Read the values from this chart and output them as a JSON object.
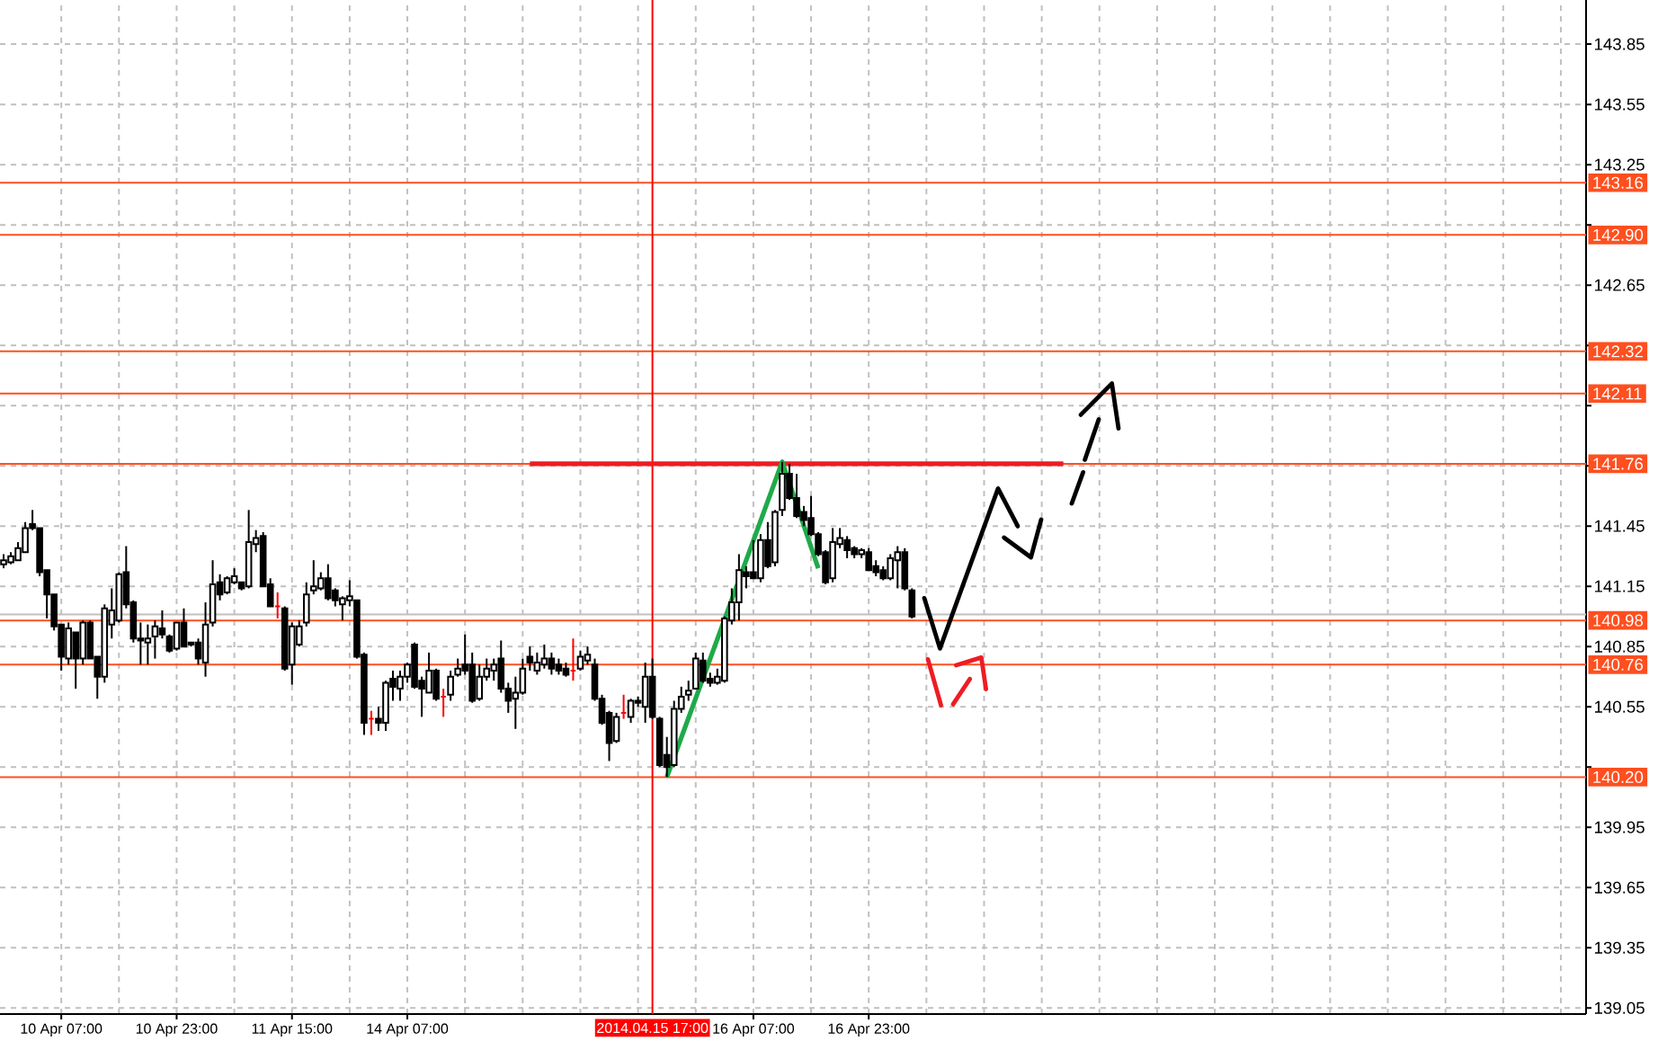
{
  "chart_data": {
    "type": "candlestick",
    "categories": [
      null,
      null,
      null,
      null,
      null,
      null,
      null,
      null,
      "10 Apr 07:00",
      null,
      null,
      null,
      null,
      null,
      null,
      null,
      null,
      null,
      null,
      null,
      null,
      null,
      null,
      null,
      "10 Apr 23:00",
      null,
      null,
      null,
      null,
      null,
      null,
      null,
      null,
      null,
      null,
      null,
      null,
      null,
      null,
      null,
      "11 Apr 15:00",
      null,
      null,
      null,
      null,
      null,
      null,
      null,
      null,
      null,
      null,
      null,
      null,
      null,
      null,
      null,
      "14 Apr 07:00",
      null,
      null,
      null,
      null,
      null,
      null,
      null,
      null,
      null,
      null,
      null,
      null,
      null,
      null,
      null,
      null,
      null,
      null,
      null,
      null,
      null,
      null,
      null,
      null,
      null,
      null,
      null,
      null,
      null,
      null,
      null,
      null,
      null,
      "2014.04.15 17:00",
      null,
      null,
      null,
      null,
      null,
      null,
      null,
      null,
      null,
      null,
      null,
      null,
      null,
      "16 Apr 07:00",
      null,
      null,
      null,
      null,
      null,
      null,
      null,
      null,
      null,
      null,
      null,
      null,
      null,
      null,
      null,
      "16 Apr 23:00",
      null,
      null,
      null,
      null,
      null,
      null,
      null,
      null,
      null,
      null,
      null,
      null,
      null,
      null,
      null,
      null,
      null,
      null,
      null,
      null,
      null,
      null,
      null,
      null,
      null,
      null,
      null,
      null,
      null,
      null,
      null,
      null,
      null,
      null,
      null,
      null,
      null,
      null,
      null,
      null,
      null,
      null,
      null,
      null,
      null,
      null,
      null,
      null,
      null,
      null,
      null,
      null,
      null,
      null,
      null,
      null,
      null,
      null,
      null,
      null,
      null,
      null,
      null,
      null,
      null,
      null,
      null,
      null,
      null,
      null,
      null,
      null,
      null,
      null,
      null,
      null,
      null,
      null,
      null,
      null,
      null,
      null,
      null,
      null,
      null,
      null,
      null,
      null,
      null,
      null,
      null,
      null,
      null,
      null,
      null,
      null,
      null,
      null,
      null
    ],
    "ohlc": [
      [
        141.26,
        141.31,
        141.24,
        141.28
      ],
      [
        141.27,
        141.32,
        141.26,
        141.3
      ],
      [
        141.28,
        141.37,
        141.28,
        141.34
      ],
      [
        141.32,
        141.47,
        141.32,
        141.44
      ],
      [
        141.46,
        141.53,
        141.43,
        141.44
      ],
      [
        141.44,
        141.44,
        141.2,
        141.22
      ],
      [
        141.23,
        141.23,
        140.99,
        141.11
      ],
      [
        141.11,
        141.11,
        140.93,
        140.95
      ],
      [
        140.96,
        140.96,
        140.73,
        140.8
      ],
      [
        140.79,
        140.97,
        140.76,
        140.94
      ],
      [
        140.92,
        140.92,
        140.64,
        140.79
      ],
      [
        140.79,
        140.98,
        140.76,
        140.97
      ],
      [
        140.97,
        140.98,
        140.79,
        140.79
      ],
      [
        140.8,
        140.8,
        140.59,
        140.7
      ],
      [
        140.7,
        141.06,
        140.67,
        141.04
      ],
      [
        140.96,
        141.14,
        140.89,
        141.03
      ],
      [
        140.98,
        141.22,
        140.97,
        141.21
      ],
      [
        141.22,
        141.35,
        141.04,
        141.06
      ],
      [
        141.07,
        141.08,
        140.87,
        140.89
      ],
      [
        140.89,
        140.97,
        140.76,
        140.88
      ],
      [
        140.87,
        140.96,
        140.76,
        140.89
      ],
      [
        140.9,
        140.98,
        140.79,
        140.95
      ],
      [
        140.94,
        141.03,
        140.89,
        140.91
      ],
      [
        140.9,
        140.91,
        140.82,
        140.83
      ],
      [
        140.84,
        140.97,
        140.83,
        140.97
      ],
      [
        140.97,
        141.04,
        140.85,
        140.85
      ],
      [
        140.87,
        140.87,
        140.85,
        140.86
      ],
      [
        140.87,
        140.89,
        140.76,
        140.79
      ],
      [
        140.77,
        141.07,
        140.7,
        140.96
      ],
      [
        140.97,
        141.28,
        140.95,
        141.16
      ],
      [
        141.17,
        141.21,
        141.08,
        141.11
      ],
      [
        141.12,
        141.2,
        141.11,
        141.19
      ],
      [
        141.17,
        141.24,
        141.16,
        141.2
      ],
      [
        141.17,
        141.17,
        141.13,
        141.14
      ],
      [
        141.15,
        141.53,
        141.14,
        141.37
      ],
      [
        141.36,
        141.43,
        141.32,
        141.39
      ],
      [
        141.4,
        141.42,
        141.15,
        141.15
      ],
      [
        141.16,
        141.19,
        141.05,
        141.05
      ],
      [
        141.05,
        141.12,
        140.99,
        141.05
      ],
      [
        141.04,
        141.05,
        140.73,
        140.74
      ],
      [
        140.76,
        140.97,
        140.66,
        140.95
      ],
      [
        140.86,
        140.98,
        140.85,
        140.95
      ],
      [
        140.97,
        141.17,
        140.95,
        141.11
      ],
      [
        141.13,
        141.28,
        141.11,
        141.15
      ],
      [
        141.14,
        141.22,
        141.13,
        141.19
      ],
      [
        141.19,
        141.26,
        141.08,
        141.09
      ],
      [
        141.13,
        141.14,
        141.05,
        141.08
      ],
      [
        141.06,
        141.1,
        140.98,
        141.09
      ],
      [
        141.08,
        141.18,
        141.05,
        141.1
      ],
      [
        141.08,
        141.08,
        140.79,
        140.8
      ],
      [
        140.81,
        140.82,
        140.41,
        140.47
      ],
      [
        140.49,
        140.53,
        140.41,
        140.49
      ],
      [
        140.49,
        140.55,
        140.43,
        140.47
      ],
      [
        140.47,
        140.68,
        140.43,
        140.67
      ],
      [
        140.69,
        140.73,
        140.58,
        140.65
      ],
      [
        140.64,
        140.73,
        140.58,
        140.7
      ],
      [
        140.7,
        140.77,
        140.67,
        140.76
      ],
      [
        140.86,
        140.87,
        140.64,
        140.65
      ],
      [
        140.68,
        140.7,
        140.5,
        140.64
      ],
      [
        140.62,
        140.82,
        140.62,
        140.73
      ],
      [
        140.73,
        140.74,
        140.58,
        140.59
      ],
      [
        140.6,
        140.64,
        140.5,
        140.6
      ],
      [
        140.61,
        140.73,
        140.58,
        140.7
      ],
      [
        140.71,
        140.79,
        140.7,
        140.74
      ],
      [
        140.76,
        140.91,
        140.71,
        140.73
      ],
      [
        140.76,
        140.82,
        140.57,
        140.58
      ],
      [
        140.59,
        140.76,
        140.58,
        140.7
      ],
      [
        140.7,
        140.79,
        140.68,
        140.74
      ],
      [
        140.73,
        140.79,
        140.68,
        140.76
      ],
      [
        140.79,
        140.88,
        140.62,
        140.64
      ],
      [
        140.64,
        140.67,
        140.52,
        140.58
      ],
      [
        140.59,
        140.7,
        140.44,
        140.62
      ],
      [
        140.62,
        140.79,
        140.61,
        140.74
      ],
      [
        140.8,
        140.85,
        140.73,
        140.77
      ],
      [
        140.73,
        140.82,
        140.71,
        140.77
      ],
      [
        140.76,
        140.86,
        140.74,
        140.79
      ],
      [
        140.79,
        140.82,
        140.71,
        140.74
      ],
      [
        140.76,
        140.79,
        140.71,
        140.73
      ],
      [
        140.74,
        140.77,
        140.7,
        140.71
      ],
      [
        140.73,
        140.89,
        140.68,
        140.73
      ],
      [
        140.74,
        140.83,
        140.73,
        140.8
      ],
      [
        140.78,
        140.85,
        140.76,
        140.81
      ],
      [
        140.76,
        140.79,
        140.58,
        140.59
      ],
      [
        140.59,
        140.61,
        140.46,
        140.47
      ],
      [
        140.52,
        140.53,
        140.28,
        140.37
      ],
      [
        140.38,
        140.52,
        140.37,
        140.5
      ],
      [
        140.52,
        140.61,
        140.49,
        140.52
      ],
      [
        140.5,
        140.59,
        140.47,
        140.58
      ],
      [
        140.58,
        140.6,
        140.55,
        140.57
      ],
      [
        140.55,
        140.77,
        140.47,
        140.7
      ],
      [
        140.7,
        140.79,
        140.49,
        140.5
      ],
      [
        140.49,
        140.5,
        140.25,
        140.26
      ],
      [
        140.31,
        140.4,
        140.2,
        140.25
      ],
      [
        140.26,
        140.58,
        140.25,
        140.54
      ],
      [
        140.54,
        140.65,
        140.52,
        140.6
      ],
      [
        140.61,
        140.68,
        140.58,
        140.63
      ],
      [
        140.64,
        140.82,
        140.64,
        140.79
      ],
      [
        140.78,
        140.82,
        140.67,
        140.68
      ],
      [
        140.69,
        140.72,
        140.65,
        140.67
      ],
      [
        140.67,
        140.74,
        140.66,
        140.7
      ],
      [
        140.68,
        141.0,
        140.67,
        140.99
      ],
      [
        140.98,
        141.14,
        140.96,
        141.07
      ],
      [
        141.07,
        141.31,
        140.98,
        141.23
      ],
      [
        141.22,
        141.25,
        141.14,
        141.2
      ],
      [
        141.22,
        141.38,
        141.19,
        141.19
      ],
      [
        141.19,
        141.41,
        141.17,
        141.38
      ],
      [
        141.38,
        141.47,
        141.24,
        141.25
      ],
      [
        141.27,
        141.53,
        141.25,
        141.52
      ],
      [
        141.53,
        141.77,
        141.5,
        141.71
      ],
      [
        141.71,
        141.76,
        141.58,
        141.59
      ],
      [
        141.59,
        141.71,
        141.49,
        141.5
      ],
      [
        141.52,
        141.55,
        141.45,
        141.48
      ],
      [
        141.49,
        141.6,
        141.4,
        141.41
      ],
      [
        141.41,
        141.42,
        141.3,
        141.31
      ],
      [
        141.32,
        141.33,
        141.16,
        141.17
      ],
      [
        141.19,
        141.44,
        141.17,
        141.37
      ],
      [
        141.36,
        141.44,
        141.34,
        141.39
      ],
      [
        141.38,
        141.4,
        141.29,
        141.33
      ],
      [
        141.34,
        141.35,
        141.29,
        141.31
      ],
      [
        141.31,
        141.34,
        141.29,
        141.33
      ],
      [
        141.32,
        141.34,
        141.23,
        141.23
      ],
      [
        141.25,
        141.28,
        141.2,
        141.22
      ],
      [
        141.23,
        141.25,
        141.18,
        141.19
      ],
      [
        141.19,
        141.31,
        141.18,
        141.29
      ],
      [
        141.28,
        141.35,
        141.14,
        141.32
      ],
      [
        141.32,
        141.34,
        141.13,
        141.14
      ],
      [
        141.13,
        141.14,
        140.99,
        141.0
      ],
      null,
      null,
      null,
      null,
      null,
      null,
      null,
      null,
      null,
      null,
      null,
      null,
      null,
      null,
      null,
      null,
      null,
      null,
      null,
      null,
      null,
      null,
      null,
      null,
      null,
      null,
      null,
      null,
      null,
      null,
      null,
      null,
      null,
      null,
      null,
      null,
      null,
      null,
      null,
      null,
      null,
      null,
      null,
      null,
      null,
      null,
      null,
      null,
      null,
      null,
      null,
      null,
      null,
      null,
      null,
      null,
      null,
      null,
      null,
      null,
      null,
      null,
      null,
      null,
      null,
      null,
      null,
      null,
      null,
      null,
      null,
      null,
      null,
      null,
      null,
      null,
      null,
      null,
      null,
      null,
      null,
      null,
      null,
      null,
      null,
      null,
      null,
      null,
      null,
      null,
      null,
      null,
      null
    ],
    "colors": [
      "#000000",
      "#000000",
      "#000000",
      "#000000",
      "#000000",
      "#000000",
      "#000000",
      "#000000",
      "#000000",
      "#000000",
      "#000000",
      "#000000",
      "#000000",
      "#000000",
      "#000000",
      "#000000",
      "#000000",
      "#000000",
      "#000000",
      "#000000",
      "#000000",
      "#000000",
      "#000000",
      "#000000",
      "#000000",
      "#000000",
      "#000000",
      "#000000",
      "#000000",
      "#000000",
      "#000000",
      "#000000",
      "#000000",
      "#000000",
      "#000000",
      "#000000",
      "#000000",
      "#000000",
      "#ff0000",
      "#000000",
      "#000000",
      "#000000",
      "#000000",
      "#000000",
      "#000000",
      "#000000",
      "#000000",
      "#000000",
      "#000000",
      "#000000",
      "#000000",
      "#ff0000",
      "#000000",
      "#000000",
      "#000000",
      "#000000",
      "#000000",
      "#000000",
      "#000000",
      "#000000",
      "#000000",
      "#ff0000",
      "#000000",
      "#000000",
      "#000000",
      "#000000",
      "#000000",
      "#000000",
      "#000000",
      "#000000",
      "#000000",
      "#000000",
      "#000000",
      "#000000",
      "#000000",
      "#000000",
      "#000000",
      "#000000",
      "#000000",
      "#ff0000",
      "#000000",
      "#000000",
      "#000000",
      "#000000",
      "#000000",
      "#000000",
      "#ff0000",
      "#000000",
      "#000000",
      "#000000",
      "#000000",
      "#000000",
      "#000000",
      "#000000",
      "#000000",
      "#000000",
      "#000000",
      "#000000",
      "#000000",
      "#000000",
      "#000000",
      "#000000",
      "#000000",
      "#000000",
      "#000000",
      "#000000",
      "#000000",
      "#000000",
      "#000000",
      "#000000",
      "#000000",
      "#000000",
      "#000000",
      "#000000",
      "#000000",
      "#000000",
      "#000000",
      "#000000",
      "#000000",
      "#000000",
      "#000000",
      "#000000",
      "#000000",
      "#000000",
      "#000000",
      "#000000",
      "#000000",
      null,
      null,
      null,
      null,
      null,
      null,
      null,
      null,
      null,
      null,
      null,
      null,
      null,
      null,
      null,
      null,
      null,
      null,
      null,
      null,
      null,
      null,
      null,
      null,
      null,
      null,
      null,
      null,
      null,
      null,
      null,
      null,
      null,
      null,
      null,
      null,
      null,
      null,
      null,
      null,
      null,
      null,
      null,
      null,
      null,
      null,
      null,
      null,
      null,
      null,
      null,
      null,
      null,
      null,
      null,
      null,
      null,
      null,
      null,
      null,
      null,
      null,
      null,
      null,
      null,
      null,
      null,
      null,
      null,
      null,
      null,
      null,
      null,
      null,
      null,
      null,
      null,
      null,
      null,
      null,
      null,
      null,
      null,
      null,
      null,
      null,
      null,
      null,
      null,
      null,
      null,
      null,
      null
    ],
    "series": [
      {
        "type": "line",
        "color": "#ee1c24",
        "values": [
          null,
          null,
          null,
          null,
          null,
          null,
          null,
          null,
          null,
          null,
          null,
          null,
          null,
          null,
          null,
          null,
          null,
          null,
          null,
          null,
          null,
          null,
          null,
          null,
          null,
          null,
          null,
          null,
          null,
          null,
          null,
          null,
          null,
          null,
          null,
          null,
          null,
          null,
          null,
          null,
          null,
          null,
          null,
          null,
          null,
          null,
          null,
          null,
          null,
          null,
          null,
          null,
          null,
          null,
          null,
          null,
          null,
          null,
          null,
          null,
          null,
          null,
          null,
          null,
          null,
          null,
          null,
          null,
          null,
          null,
          null,
          null,
          null,
          141.76,
          141.76,
          141.76,
          141.76,
          141.76,
          141.76,
          141.76,
          141.76,
          141.76,
          141.76,
          141.76,
          141.76,
          141.76,
          141.76,
          141.76,
          141.76,
          141.76,
          141.76,
          141.76,
          141.76,
          141.76,
          141.76,
          141.76,
          141.76,
          141.76,
          141.76,
          141.76,
          141.76,
          141.76,
          141.76,
          141.76,
          141.76,
          141.76,
          141.76,
          141.76,
          141.76,
          141.76,
          141.76,
          141.76,
          141.76,
          141.76,
          141.76,
          141.76,
          141.76,
          141.76,
          141.76,
          141.76,
          141.76,
          141.76,
          141.76,
          141.76,
          141.76,
          141.76,
          141.76,
          141.76,
          141.76,
          141.76,
          141.76,
          141.76,
          141.76,
          141.76,
          141.76,
          141.76,
          141.76,
          141.76,
          141.76,
          141.76,
          141.76,
          141.76,
          141.76,
          141.76,
          141.76,
          141.76,
          141.76,
          141.76,
          null,
          null,
          null,
          null,
          null,
          null,
          null,
          null,
          null,
          null,
          null,
          null,
          null,
          null,
          null,
          null,
          null,
          null,
          null,
          null,
          null,
          null,
          null,
          null,
          null,
          null,
          null,
          null,
          null,
          null,
          null,
          null,
          null,
          null,
          null,
          null,
          null,
          null,
          null,
          null,
          null,
          null,
          null,
          null,
          null,
          null,
          null,
          null,
          null,
          null,
          null,
          null,
          null,
          null,
          null,
          null,
          null,
          null,
          null,
          null,
          null,
          null,
          null,
          null,
          null,
          null,
          null,
          null,
          null,
          null,
          null,
          null
        ]
      },
      {
        "type": "line",
        "color": "#1faa4a",
        "values": [
          null,
          null,
          null,
          null,
          null,
          null,
          null,
          null,
          null,
          null,
          null,
          null,
          null,
          null,
          null,
          null,
          null,
          null,
          null,
          null,
          null,
          null,
          null,
          null,
          null,
          null,
          null,
          null,
          null,
          null,
          null,
          null,
          null,
          null,
          null,
          null,
          null,
          null,
          null,
          null,
          null,
          null,
          null,
          null,
          null,
          null,
          null,
          null,
          null,
          null,
          null,
          null,
          null,
          null,
          null,
          null,
          null,
          null,
          null,
          null,
          null,
          null,
          null,
          null,
          null,
          null,
          null,
          null,
          null,
          null,
          null,
          null,
          null,
          null,
          null,
          null,
          null,
          null,
          null,
          null,
          null,
          null,
          null,
          null,
          null,
          null,
          null,
          null,
          null,
          null,
          null,
          null,
          140.2,
          null,
          null,
          null,
          null,
          null,
          null,
          null,
          null,
          null,
          null,
          null,
          null,
          null,
          null,
          null,
          141.77,
          null,
          null,
          null,
          null,
          141.24,
          null,
          null,
          null,
          null,
          null,
          null,
          null,
          null,
          null,
          null,
          null,
          null,
          null,
          null,
          null,
          null,
          null,
          null,
          null,
          null,
          null,
          null,
          null,
          null,
          null,
          null,
          null,
          null,
          null,
          null,
          null,
          null,
          null,
          null,
          null,
          null,
          null,
          null,
          null,
          null,
          null,
          null,
          null,
          null,
          null,
          null,
          null,
          null,
          null,
          null,
          null,
          null,
          null,
          null,
          null,
          null,
          null,
          null,
          null,
          null,
          null,
          null,
          null,
          null,
          null,
          null,
          null,
          null,
          null,
          null,
          null,
          null,
          null,
          null,
          null,
          null,
          null,
          null,
          null,
          null,
          null,
          null,
          null,
          null,
          null,
          null,
          null,
          null,
          null,
          null,
          null,
          null,
          null,
          null,
          null,
          null,
          null,
          null,
          null,
          null,
          null,
          null,
          null,
          null,
          null,
          null
        ]
      }
    ],
    "ylim": [
      139.02,
      144.07
    ],
    "yticks": [
      139.05,
      139.35,
      139.65,
      139.95,
      {
        "value": 140.25,
        "label": null
      },
      140.55,
      140.85,
      141.15,
      141.45,
      {
        "value": 141.75,
        "label": null
      },
      {
        "value": 142.05,
        "label": null
      },
      {
        "value": 142.35,
        "label": null
      },
      142.65,
      {
        "value": 142.95,
        "label": null
      },
      143.25,
      143.55,
      143.85
    ],
    "ref_lines": [
      {
        "axis": "y",
        "value": 143.16,
        "label": "143.16",
        "color": "#ff4f1f"
      },
      {
        "axis": "y",
        "value": 142.9,
        "label": "142.90",
        "color": "#ff4f1f"
      },
      {
        "axis": "y",
        "value": 142.32,
        "label": "142.32",
        "color": "#ff4f1f"
      },
      {
        "axis": "y",
        "value": 142.11,
        "label": "142.11",
        "color": "#ff4f1f"
      },
      {
        "axis": "y",
        "value": 141.76,
        "label": "141.76",
        "color": "#ff4f1f"
      },
      {
        "axis": "y",
        "value": 141.01,
        "color": "#c0c0c0"
      },
      {
        "axis": "y",
        "value": 140.98,
        "label": "140.98",
        "color": "#ff4f1f"
      },
      {
        "axis": "y",
        "value": 140.76,
        "label": "140.76",
        "color": "#ff4f1f"
      },
      {
        "axis": "y",
        "value": 140.2,
        "label": "140.20",
        "color": "#ff4f1f"
      },
      {
        "axis": "x",
        "value": "2014.04.15 17:00",
        "color": "#ff0000"
      }
    ],
    "grid": true
  }
}
